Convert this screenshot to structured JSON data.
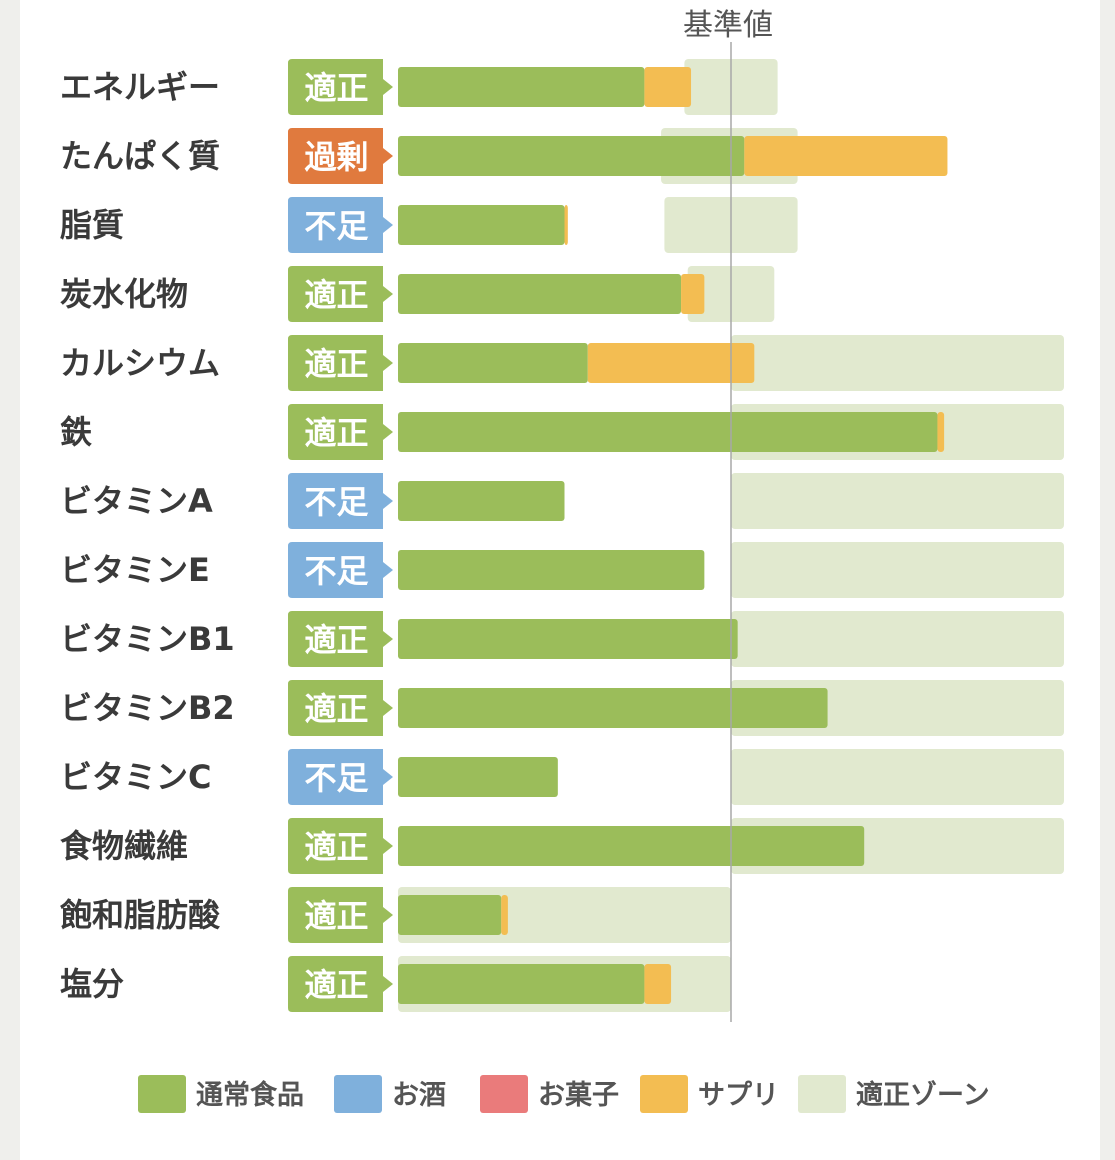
{
  "chart_data": {
    "type": "bar",
    "stacked": true,
    "reference_label": "基準値",
    "categories": [
      "エネルギー",
      "たんぱく質",
      "脂質",
      "炭水化物",
      "カルシウム",
      "鉄",
      "ビタミンA",
      "ビタミンE",
      "ビタミンB1",
      "ビタミンB2",
      "ビタミンC",
      "食物繊維",
      "飽和脂肪酸",
      "塩分"
    ],
    "status": [
      "適正",
      "過剰",
      "不足",
      "適正",
      "適正",
      "適正",
      "不足",
      "不足",
      "適正",
      "適正",
      "不足",
      "適正",
      "適正",
      "適正"
    ],
    "status_colors": {
      "適正": "#9bbd5a",
      "過剰": "#e07a3e",
      "不足": "#7fb0dc"
    },
    "series": [
      {
        "name": "通常食品",
        "color": "#9bbd5a",
        "values": [
          74,
          104,
          50,
          85,
          57,
          162,
          50,
          92,
          102,
          129,
          48,
          140,
          31,
          74
        ]
      },
      {
        "name": "お酒",
        "color": "#7fb0dc",
        "values": [
          0,
          0,
          0,
          0,
          0,
          0,
          0,
          0,
          0,
          0,
          0,
          0,
          0,
          0
        ]
      },
      {
        "name": "お菓子",
        "color": "#ea7b7b",
        "values": [
          0,
          0,
          0,
          0,
          0,
          0,
          0,
          0,
          0,
          0,
          0,
          0,
          0,
          0
        ]
      },
      {
        "name": "サプリ",
        "color": "#f3bd52",
        "values": [
          14,
          61,
          1,
          7,
          50,
          2,
          0,
          0,
          0,
          0,
          0,
          0,
          2,
          8
        ]
      }
    ],
    "optimal_zone": {
      "name": "適正ゾーン",
      "color": "#e1e9cf",
      "ranges": [
        [
          86,
          114
        ],
        [
          79,
          120
        ],
        [
          80,
          120
        ],
        [
          87,
          113
        ],
        [
          100,
          200
        ],
        [
          100,
          200
        ],
        [
          100,
          200
        ],
        [
          100,
          200
        ],
        [
          100,
          200
        ],
        [
          100,
          200
        ],
        [
          100,
          200
        ],
        [
          100,
          200
        ],
        [
          0,
          100
        ],
        [
          0,
          100
        ]
      ]
    },
    "xlim": [
      0,
      200
    ],
    "reference_value": 100
  },
  "legend": [
    "通常食品",
    "お酒",
    "お菓子",
    "サプリ",
    "適正ゾーン"
  ]
}
